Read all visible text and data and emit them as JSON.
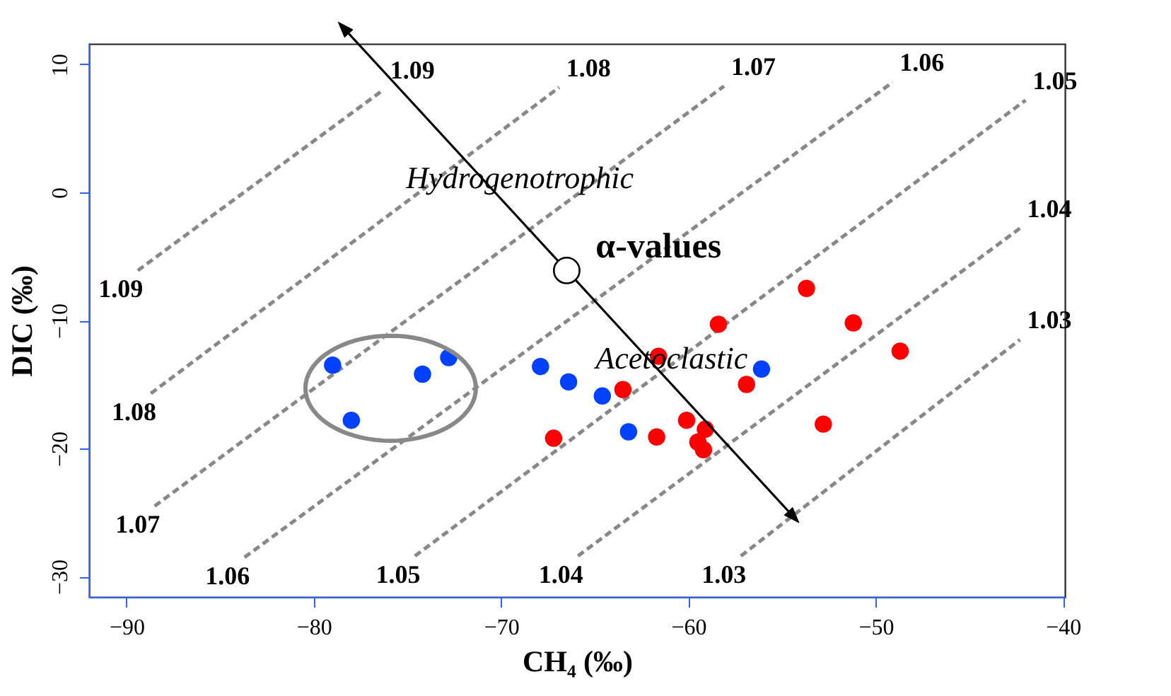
{
  "chart_data": {
    "type": "scatter",
    "xlabel": "CH₄ (‰)",
    "ylabel": "DIC (‰)",
    "xlim": [
      -92,
      -39.9
    ],
    "ylim": [
      -31.6,
      11.6
    ],
    "xticks": [
      -90,
      -80,
      -70,
      -60,
      -50,
      -40
    ],
    "yticks": [
      -30,
      -20,
      -10,
      0,
      10
    ],
    "grid": false,
    "series": [
      {
        "type": "line",
        "name": "1.09",
        "color": "#888888",
        "line_style": "dashed",
        "x": [
          -89.4,
          -76.3
        ],
        "values": [
          -6.1,
          8.0
        ]
      },
      {
        "type": "line",
        "name": "1.08",
        "color": "#888888",
        "line_style": "dashed",
        "x": [
          -88.7,
          -66.9
        ],
        "values": [
          -15.7,
          8.2
        ]
      },
      {
        "type": "line",
        "name": "1.07",
        "color": "#888888",
        "line_style": "dashed",
        "x": [
          -88.5,
          -58.1
        ],
        "values": [
          -24.5,
          8.3
        ]
      },
      {
        "type": "line",
        "name": "1.06",
        "color": "#888888",
        "line_style": "dashed",
        "x": [
          -83.7,
          -49.1
        ],
        "values": [
          -28.5,
          8.6
        ]
      },
      {
        "type": "line",
        "name": "1.05",
        "color": "#888888",
        "line_style": "dashed",
        "x": [
          -74.6,
          -42.0
        ],
        "values": [
          -28.4,
          7.2
        ]
      },
      {
        "type": "line",
        "name": "1.04",
        "color": "#888888",
        "line_style": "dashed",
        "x": [
          -65.9,
          -42.3
        ],
        "values": [
          -28.4,
          -2.8
        ]
      },
      {
        "type": "line",
        "name": "1.03",
        "color": "#888888",
        "line_style": "dashed",
        "x": [
          -57.2,
          -42.3
        ],
        "values": [
          -28.4,
          -11.5
        ]
      },
      {
        "color": "#0040ff",
        "marker": "circle",
        "x": [
          -79.0,
          -78.0,
          -74.2,
          -72.8,
          -67.9,
          -66.4,
          -64.6,
          -63.2,
          -56.1
        ],
        "values": [
          -13.5,
          -17.8,
          -14.2,
          -12.9,
          -13.6,
          -14.8,
          -15.9,
          -18.7,
          -13.8
        ]
      },
      {
        "color": "#ff0000",
        "marker": "circle",
        "x": [
          -67.2,
          -63.5,
          -61.7,
          -61.6,
          -60.1,
          -59.1,
          -59.5,
          -59.2,
          -58.4,
          -56.9,
          -53.7,
          -51.2,
          -48.7,
          -52.8
        ],
        "values": [
          -19.2,
          -15.4,
          -19.1,
          -12.8,
          -17.8,
          -18.5,
          -19.5,
          -20.1,
          -10.3,
          -15.0,
          -7.5,
          -10.2,
          -12.4,
          -18.1
        ]
      }
    ],
    "annotations": [
      "Hydrogenotrophic",
      "Acetoclastic",
      "α-values"
    ]
  }
}
